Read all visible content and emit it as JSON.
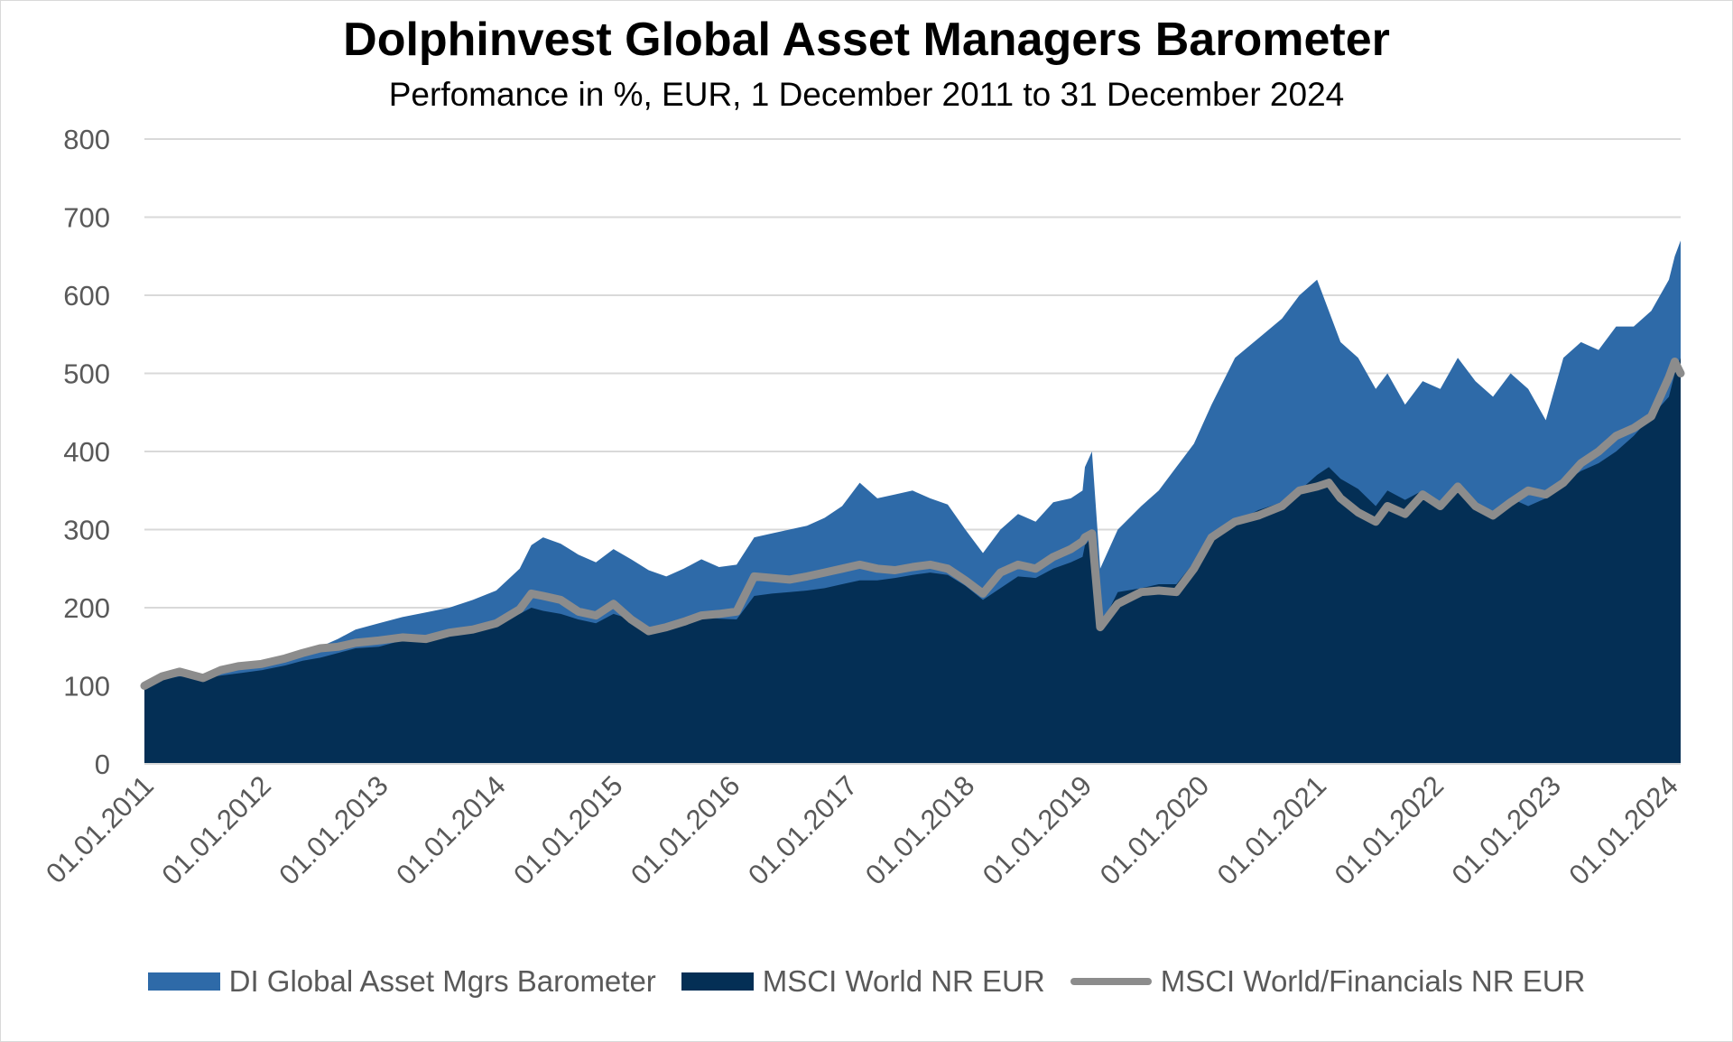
{
  "title": "Dolphinvest Global Asset Managers Barometer",
  "subtitle": "Perfomance in %, EUR, 1 December 2011 to 31 December 2024",
  "colors": {
    "barometer": "#2e6aa8",
    "msci_world": "#042f55",
    "msci_financials": "#8c8c8c",
    "grid": "#d9d9d9"
  },
  "chart_data": {
    "type": "area",
    "ylim": [
      0,
      800
    ],
    "yticks": [
      0,
      100,
      200,
      300,
      400,
      500,
      600,
      700,
      800
    ],
    "yticklabels": [
      "0",
      "100",
      "200",
      "300",
      "400",
      "500",
      "600",
      "700",
      "800"
    ],
    "xlim": [
      2011.0,
      2024.1
    ],
    "xticks": [
      2011,
      2012,
      2013,
      2014,
      2015,
      2016,
      2017,
      2018,
      2019,
      2020,
      2021,
      2022,
      2023,
      2024
    ],
    "xticklabels": [
      "01.01.2011",
      "01.01.2012",
      "01.01.2013",
      "01.01.2014",
      "01.01.2015",
      "01.01.2016",
      "01.01.2017",
      "01.01.2018",
      "01.01.2019",
      "01.01.2020",
      "01.01.2021",
      "01.01.2022",
      "01.01.2023",
      "01.01.2024"
    ],
    "x": [
      2011.0,
      2011.15,
      2011.3,
      2011.5,
      2011.65,
      2011.8,
      2012.0,
      2012.2,
      2012.35,
      2012.5,
      2012.65,
      2012.8,
      2013.0,
      2013.2,
      2013.4,
      2013.6,
      2013.8,
      2014.0,
      2014.2,
      2014.3,
      2014.4,
      2014.55,
      2014.7,
      2014.85,
      2015.0,
      2015.15,
      2015.3,
      2015.45,
      2015.6,
      2015.75,
      2015.9,
      2016.05,
      2016.2,
      2016.35,
      2016.5,
      2016.65,
      2016.8,
      2016.95,
      2017.1,
      2017.25,
      2017.4,
      2017.55,
      2017.7,
      2017.85,
      2018.0,
      2018.15,
      2018.3,
      2018.45,
      2018.6,
      2018.75,
      2018.9,
      2019.0,
      2019.02,
      2019.08,
      2019.15,
      2019.3,
      2019.5,
      2019.65,
      2019.8,
      2019.95,
      2020.1,
      2020.3,
      2020.5,
      2020.7,
      2020.85,
      2021.0,
      2021.1,
      2021.2,
      2021.35,
      2021.5,
      2021.6,
      2021.75,
      2021.9,
      2022.05,
      2022.2,
      2022.35,
      2022.5,
      2022.65,
      2022.8,
      2022.95,
      2023.1,
      2023.25,
      2023.4,
      2023.55,
      2023.7,
      2023.85,
      2024.0,
      2024.05,
      2024.1
    ],
    "series": [
      {
        "name": "DI Global Asset Mgrs Barometer",
        "style": "area",
        "values": [
          100,
          108,
          115,
          112,
          118,
          122,
          128,
          136,
          145,
          150,
          160,
          172,
          180,
          188,
          194,
          200,
          210,
          222,
          250,
          280,
          290,
          282,
          268,
          258,
          275,
          262,
          248,
          240,
          250,
          262,
          252,
          255,
          290,
          295,
          300,
          305,
          315,
          330,
          360,
          340,
          345,
          350,
          340,
          332,
          300,
          270,
          300,
          320,
          310,
          335,
          340,
          350,
          380,
          400,
          250,
          300,
          330,
          350,
          380,
          410,
          460,
          520,
          545,
          570,
          600,
          620,
          580,
          540,
          520,
          480,
          500,
          460,
          490,
          480,
          520,
          490,
          470,
          500,
          480,
          440,
          520,
          540,
          530,
          560,
          560,
          580,
          620,
          650,
          670
        ]
      },
      {
        "name": "MSCI World NR EUR",
        "style": "area",
        "values": [
          100,
          108,
          112,
          110,
          113,
          116,
          120,
          126,
          132,
          136,
          142,
          148,
          150,
          158,
          165,
          170,
          176,
          180,
          192,
          200,
          196,
          192,
          185,
          180,
          192,
          185,
          174,
          170,
          180,
          188,
          186,
          185,
          215,
          218,
          220,
          222,
          225,
          230,
          235,
          235,
          238,
          242,
          245,
          242,
          228,
          210,
          225,
          240,
          238,
          250,
          258,
          265,
          280,
          290,
          175,
          220,
          225,
          230,
          230,
          258,
          290,
          310,
          325,
          335,
          350,
          370,
          380,
          365,
          352,
          330,
          350,
          338,
          350,
          335,
          360,
          335,
          320,
          340,
          330,
          340,
          360,
          375,
          385,
          400,
          420,
          445,
          470,
          500,
          520
        ]
      },
      {
        "name": "MSCI World/Financials NR EUR",
        "style": "line",
        "values": [
          100,
          112,
          118,
          110,
          120,
          125,
          128,
          135,
          142,
          148,
          150,
          155,
          158,
          162,
          160,
          168,
          172,
          180,
          198,
          218,
          215,
          210,
          195,
          190,
          205,
          185,
          170,
          175,
          182,
          190,
          192,
          195,
          240,
          238,
          236,
          240,
          245,
          250,
          255,
          250,
          248,
          252,
          255,
          250,
          235,
          218,
          245,
          255,
          250,
          265,
          275,
          285,
          290,
          295,
          175,
          205,
          220,
          222,
          220,
          250,
          290,
          310,
          318,
          330,
          350,
          355,
          360,
          340,
          322,
          310,
          330,
          320,
          345,
          330,
          355,
          330,
          318,
          335,
          350,
          345,
          360,
          385,
          400,
          420,
          430,
          445,
          495,
          515,
          500
        ]
      }
    ],
    "legend": [
      "DI Global Asset Mgrs Barometer",
      "MSCI World NR EUR",
      "MSCI World/Financials NR EUR"
    ],
    "legend_position": "bottom",
    "grid": true
  }
}
